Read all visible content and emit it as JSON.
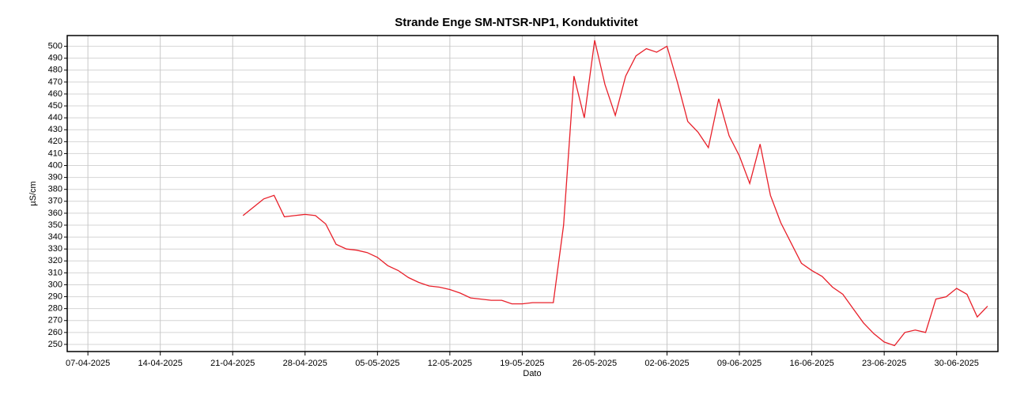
{
  "chart_data": {
    "type": "line",
    "title": "Strande Enge SM-NTSR-NP1, Konduktivitet",
    "y_label": "µS/cm",
    "x_label": "Dato",
    "grid": true,
    "xlim": [
      "05-04-2025",
      "04-07-2025"
    ],
    "xticks": [
      "07-04-2025",
      "14-04-2025",
      "21-04-2025",
      "28-04-2025",
      "05-05-2025",
      "12-05-2025",
      "19-05-2025",
      "26-05-2025",
      "02-06-2025",
      "09-06-2025",
      "16-06-2025",
      "23-06-2025",
      "30-06-2025"
    ],
    "ylim": [
      244,
      509
    ],
    "yticks": [
      250,
      260,
      270,
      280,
      290,
      300,
      310,
      320,
      330,
      340,
      350,
      360,
      370,
      380,
      390,
      400,
      410,
      420,
      430,
      440,
      450,
      460,
      470,
      480,
      490,
      500
    ],
    "x": [
      "22-04-2025",
      "23-04-2025",
      "24-04-2025",
      "25-04-2025",
      "26-04-2025",
      "27-04-2025",
      "28-04-2025",
      "29-04-2025",
      "30-04-2025",
      "01-05-2025",
      "02-05-2025",
      "03-05-2025",
      "04-05-2025",
      "05-05-2025",
      "06-05-2025",
      "07-05-2025",
      "08-05-2025",
      "09-05-2025",
      "10-05-2025",
      "11-05-2025",
      "12-05-2025",
      "13-05-2025",
      "14-05-2025",
      "15-05-2025",
      "16-05-2025",
      "17-05-2025",
      "18-05-2025",
      "19-05-2025",
      "20-05-2025",
      "21-05-2025",
      "22-05-2025",
      "23-05-2025",
      "24-05-2025",
      "25-05-2025",
      "26-05-2025",
      "27-05-2025",
      "28-05-2025",
      "29-05-2025",
      "30-05-2025",
      "31-05-2025",
      "01-06-2025",
      "02-06-2025",
      "03-06-2025",
      "04-06-2025",
      "05-06-2025",
      "06-06-2025",
      "07-06-2025",
      "08-06-2025",
      "09-06-2025",
      "10-06-2025",
      "11-06-2025",
      "12-06-2025",
      "13-06-2025",
      "14-06-2025",
      "15-06-2025",
      "16-06-2025",
      "17-06-2025",
      "18-06-2025",
      "19-06-2025",
      "20-06-2025",
      "21-06-2025",
      "22-06-2025",
      "23-06-2025",
      "24-06-2025",
      "25-06-2025",
      "26-06-2025",
      "27-06-2025",
      "28-06-2025",
      "29-06-2025",
      "30-06-2025",
      "01-07-2025",
      "02-07-2025",
      "03-07-2025"
    ],
    "series": [
      {
        "color": "#e8202a",
        "values": [
          358,
          365,
          372,
          375,
          357,
          358,
          359,
          358,
          351,
          334,
          330,
          329,
          327,
          323,
          316,
          312,
          306,
          302,
          299,
          298,
          296,
          293,
          289,
          288,
          287,
          287,
          284,
          284,
          285,
          285,
          285,
          350,
          475,
          440,
          505,
          468,
          442,
          475,
          492,
          498,
          495,
          500,
          470,
          437,
          428,
          415,
          456,
          425,
          408,
          385,
          418,
          375,
          352,
          335,
          318,
          312,
          307,
          298,
          292,
          280,
          268,
          259,
          252,
          249,
          260,
          262,
          260,
          288,
          290,
          297,
          292,
          273,
          282
        ]
      }
    ]
  }
}
